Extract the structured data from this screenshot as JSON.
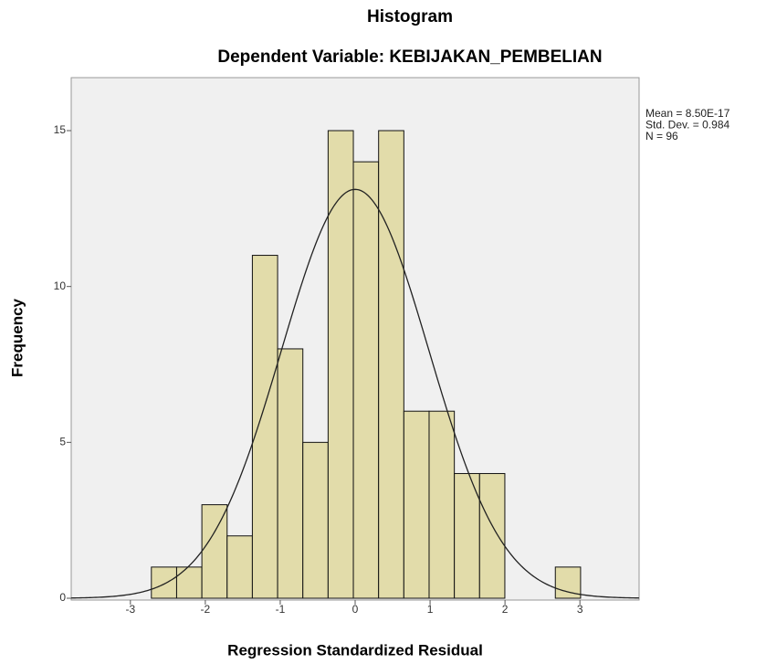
{
  "chart_data": {
    "type": "histogram",
    "title": "Histogram",
    "subtitle": "Dependent Variable: KEBIJAKAN_PEMBELIAN",
    "x_label": "Regression Standardized Residual",
    "y_label": "Frequency",
    "bins": [
      -2.72,
      -2.383,
      -2.046,
      -1.709,
      -1.372,
      -1.035,
      -0.698,
      -0.361,
      -0.024,
      0.313,
      0.65,
      0.987,
      1.324,
      1.661,
      1.998,
      2.335,
      2.672,
      3.009
    ],
    "values": [
      1,
      1,
      3,
      2,
      11,
      8,
      5,
      15,
      14,
      15,
      6,
      6,
      4,
      4,
      0,
      0,
      1
    ],
    "color": "#e2dcaa",
    "xlim": [
      -3.79,
      3.79
    ],
    "ylim": [
      0,
      16.7
    ],
    "xticks": [
      -3,
      -2,
      -1,
      0,
      1,
      2,
      3
    ],
    "yticks": [
      0,
      5,
      10,
      15
    ],
    "stats": [
      {
        "value": 8.5e-17,
        "label": "Mean = 8.50E-17"
      },
      {
        "value": 0.984,
        "label": "Std. Dev. = 0.984"
      },
      {
        "value": 96,
        "label": "N = 96"
      }
    ]
  }
}
